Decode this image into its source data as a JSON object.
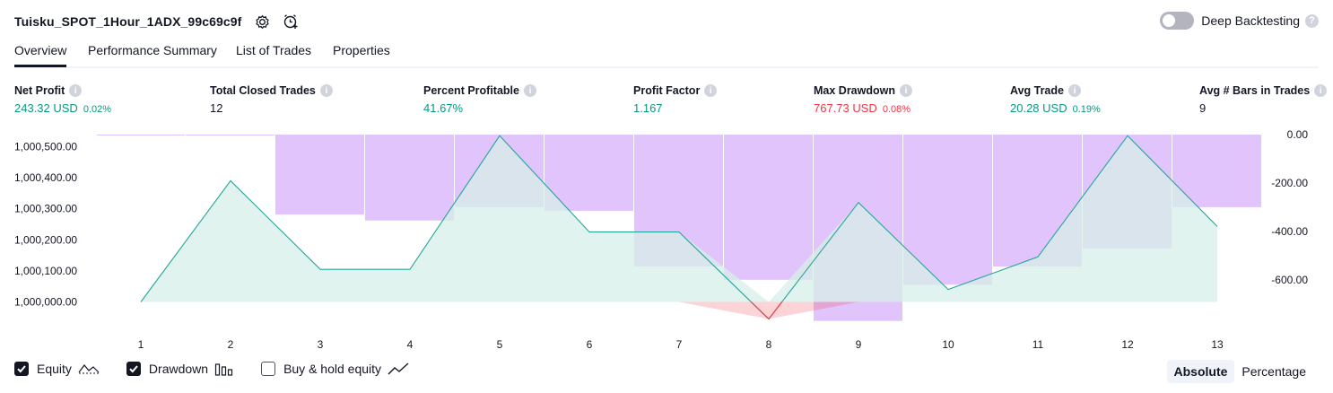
{
  "header": {
    "title": "Tuisku_SPOT_1Hour_1ADX_99c69c9f",
    "settings_icon": "gear-icon",
    "alert_icon": "add-alert-icon"
  },
  "deep_backtesting": {
    "label": "Deep Backtesting",
    "enabled": false,
    "help": "?"
  },
  "tabs": [
    {
      "label": "Overview",
      "active": true
    },
    {
      "label": "Performance Summary",
      "active": false
    },
    {
      "label": "List of Trades",
      "active": false
    },
    {
      "label": "Properties",
      "active": false
    }
  ],
  "metrics": [
    {
      "label": "Net Profit",
      "value": "243.32 USD",
      "sub": "0.02%",
      "tone": "pos"
    },
    {
      "label": "Total Closed Trades",
      "value": "12",
      "sub": "",
      "tone": "neu"
    },
    {
      "label": "Percent Profitable",
      "value": "41.67%",
      "sub": "",
      "tone": "pos"
    },
    {
      "label": "Profit Factor",
      "value": "1.167",
      "sub": "",
      "tone": "pos"
    },
    {
      "label": "Max Drawdown",
      "value": "767.73 USD",
      "sub": "0.08%",
      "tone": "neg"
    },
    {
      "label": "Avg Trade",
      "value": "20.28 USD",
      "sub": "0.19%",
      "tone": "pos"
    },
    {
      "label": "Avg # Bars in Trades",
      "value": "9",
      "sub": "",
      "tone": "neu"
    }
  ],
  "info_glyph": "i",
  "legend": [
    {
      "label": "Equity",
      "checked": true,
      "icon": "equity-line-icon"
    },
    {
      "label": "Drawdown",
      "checked": true,
      "icon": "drawdown-bars-icon"
    },
    {
      "label": "Buy & hold equity",
      "checked": false,
      "icon": "buy-hold-line-icon"
    }
  ],
  "modes": [
    {
      "label": "Absolute",
      "active": true
    },
    {
      "label": "Percentage",
      "active": false
    }
  ],
  "colors": {
    "equity_line": "#26a69a",
    "equity_fill": "#d6efe8",
    "equity_below_line": "#f23645",
    "drawdown_bar": "#d1a5fb",
    "positive": "#089981",
    "negative": "#f23645"
  },
  "chart_data": {
    "type": "area",
    "x_categories": [
      "1",
      "2",
      "3",
      "4",
      "5",
      "6",
      "7",
      "8",
      "9",
      "10",
      "11",
      "12",
      "13"
    ],
    "series": [
      {
        "name": "Equity",
        "axis": "left",
        "values": [
          1000000,
          1000390,
          1000105,
          1000105,
          1000535,
          1000225,
          1000225,
          999945,
          1000320,
          1000040,
          1000145,
          1000535,
          1000243
        ]
      },
      {
        "name": "Drawdown",
        "axis": "right",
        "type": "bar",
        "values": [
          0,
          0,
          -330,
          -355,
          -300,
          -315,
          -545,
          -600,
          -770,
          -620,
          -545,
          -470,
          -300
        ]
      }
    ],
    "left_axis": {
      "ticks": [
        "1,000,000.00",
        "1,000,100.00",
        "1,000,200.00",
        "1,000,300.00",
        "1,000,400.00",
        "1,000,500.00"
      ],
      "tick_values": [
        1000000,
        1000100,
        1000200,
        1000300,
        1000400,
        1000500
      ]
    },
    "right_axis": {
      "ticks": [
        "0.00",
        "-200.00",
        "-400.00",
        "-600.00"
      ],
      "tick_values": [
        0,
        -200,
        -400,
        -600
      ]
    }
  }
}
